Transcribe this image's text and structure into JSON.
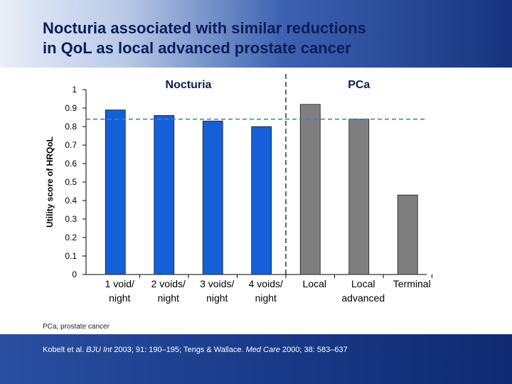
{
  "header": {
    "title_line1": "Nocturia associated with similar reductions",
    "title_line2": "in QoL as local advanced prostate cancer"
  },
  "footer": {
    "abbreviation": "PCa, prostate cancer",
    "ref_part1": "Kobelt et al. ",
    "ref_journal1": "BJU Int",
    "ref_part2": " 2003; 91: 190–195; Tengs & Wallace. ",
    "ref_journal2": "Med Care",
    "ref_part3": " 2000; 38: 583–637"
  },
  "chart_data": {
    "type": "bar",
    "ylabel": "Utility score of HRQoL",
    "ylim": [
      0,
      1
    ],
    "yticks": [
      "0",
      "0.1",
      "0.2",
      "0.3",
      "0.4",
      "0.5",
      "0.6",
      "0.7",
      "0.8",
      "0.9",
      "1"
    ],
    "reference_line": 0.84,
    "groups": [
      {
        "label": "Nocturia",
        "color": "#1560d8"
      },
      {
        "label": "PCa",
        "color": "#7f7f7f"
      }
    ],
    "categories": [
      [
        "1 void/",
        "night"
      ],
      [
        "2 voids/",
        "night"
      ],
      [
        "3 voids/",
        "night"
      ],
      [
        "4 voids/",
        "night"
      ],
      [
        "Local"
      ],
      [
        "Local",
        "advanced"
      ],
      [
        "Terminal"
      ]
    ],
    "values": [
      0.89,
      0.86,
      0.83,
      0.8,
      0.92,
      0.84,
      0.43
    ],
    "group_index": [
      0,
      0,
      0,
      0,
      1,
      1,
      1
    ]
  }
}
